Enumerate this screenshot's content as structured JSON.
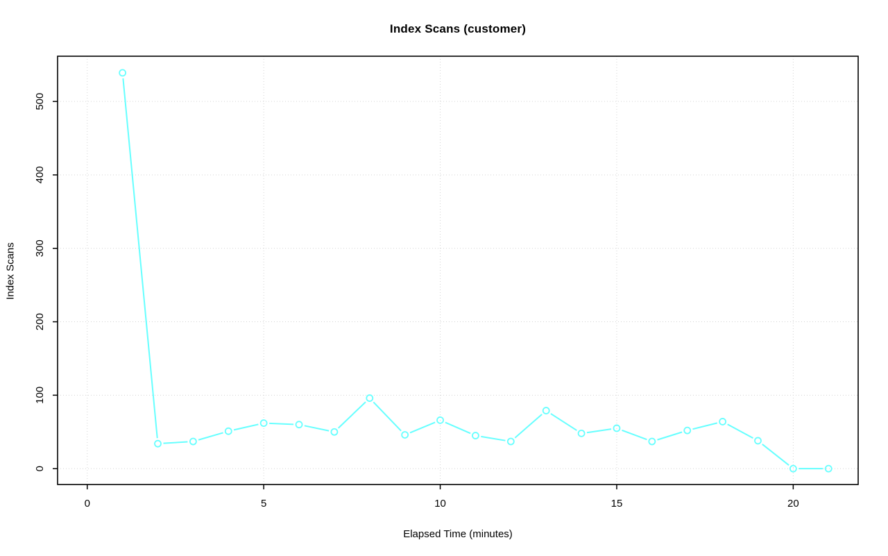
{
  "chart_data": {
    "type": "line",
    "title": "Index Scans (customer)",
    "xlabel": "Elapsed Time (minutes)",
    "ylabel": "Index Scans",
    "x": [
      1,
      2,
      3,
      4,
      5,
      6,
      7,
      8,
      9,
      10,
      11,
      12,
      13,
      14,
      15,
      16,
      17,
      18,
      19,
      20,
      21
    ],
    "values": [
      539,
      34,
      37,
      51,
      62,
      60,
      50,
      96,
      46,
      66,
      45,
      37,
      79,
      48,
      55,
      37,
      52,
      64,
      38,
      0,
      0
    ],
    "xticks": [
      0,
      5,
      10,
      15,
      20
    ],
    "yticks": [
      0,
      100,
      200,
      300,
      400,
      500
    ],
    "xlim": [
      -0.84,
      21.84
    ],
    "ylim": [
      -21.6,
      561.6
    ],
    "grid": true,
    "legend": null,
    "line_color": "#66FFFF",
    "line_width": 2,
    "marker": "open-circle",
    "marker_radius": 4.5,
    "grid_color": "#D3D3D3",
    "axis_color": "#000000",
    "text_color": "#000000",
    "background": "#FFFFFF"
  }
}
